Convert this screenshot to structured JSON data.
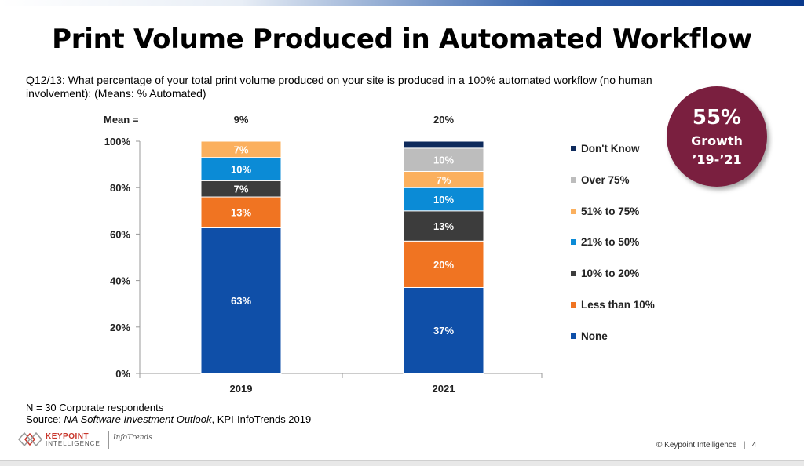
{
  "slide": {
    "title": "Print Volume Produced in Automated Workflow",
    "question": "Q12/13: What percentage of your total print volume produced on your site is produced in a 100% automated workflow (no human involvement): (Means: % Automated)",
    "footnote_n": "N = 30 Corporate respondents",
    "source_prefix": "Source: ",
    "source_italic": "NA Software Investment Outlook",
    "source_suffix": ", KPI-InfoTrends 2019",
    "copyright": "© Keypoint Intelligence",
    "page_number": "4",
    "logo": {
      "keypoint": "KEYPOINT",
      "intelligence": "INTELLIGENCE",
      "infotrends": "InfoTrends"
    }
  },
  "badge": {
    "value": "55%",
    "line1": "Growth",
    "line2": "’19-’21",
    "color": "#7a1f3f"
  },
  "chart_data": {
    "type": "bar",
    "stacked": true,
    "categories": [
      "2019",
      "2021"
    ],
    "mean_label": "Mean =",
    "means": [
      "9%",
      "20%"
    ],
    "ylim": [
      0,
      100
    ],
    "yticks": [
      "0%",
      "20%",
      "40%",
      "60%",
      "80%",
      "100%"
    ],
    "legend_position": "right",
    "series": [
      {
        "name": "None",
        "color": "#0f4fa8",
        "values": [
          63,
          37
        ],
        "labels": [
          "63%",
          "37%"
        ]
      },
      {
        "name": "Less than 10%",
        "color": "#f07422",
        "values": [
          13,
          20
        ],
        "labels": [
          "13%",
          "20%"
        ]
      },
      {
        "name": "10% to 20%",
        "color": "#3c3c3c",
        "values": [
          7,
          13
        ],
        "labels": [
          "7%",
          "13%"
        ]
      },
      {
        "name": "21% to 50%",
        "color": "#0b8bd6",
        "values": [
          10,
          10
        ],
        "labels": [
          "10%",
          "10%"
        ]
      },
      {
        "name": "51% to 75%",
        "color": "#fbb05e",
        "values": [
          7,
          7
        ],
        "labels": [
          "7%",
          "7%"
        ]
      },
      {
        "name": "Over 75%",
        "color": "#bdbdbd",
        "values": [
          0,
          10
        ],
        "labels": [
          "",
          "10%"
        ]
      },
      {
        "name": "Don't Know",
        "color": "#0e2a5c",
        "values": [
          0,
          3
        ],
        "labels": [
          "",
          ""
        ]
      }
    ]
  }
}
